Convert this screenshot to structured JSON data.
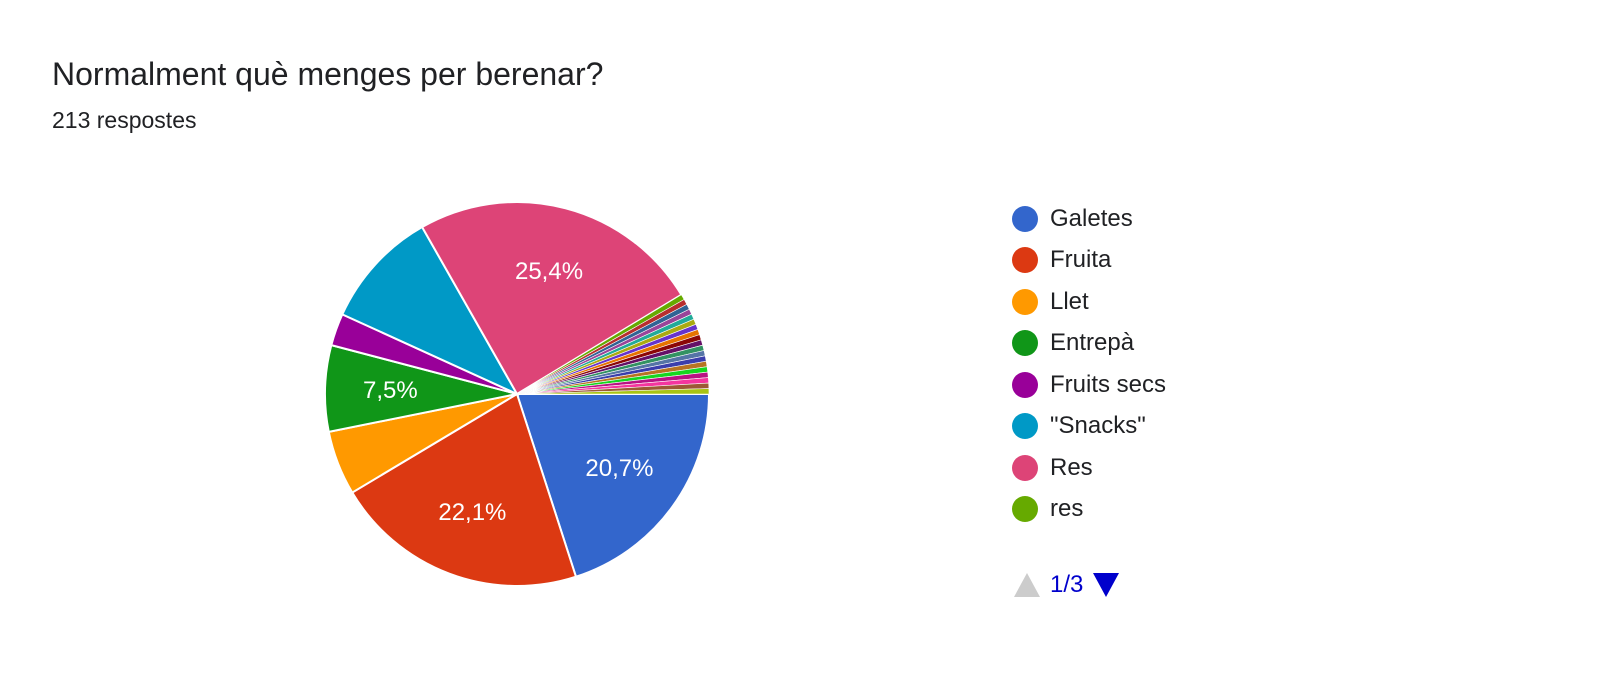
{
  "header": {
    "title": "Normalment què menges per berenar?",
    "responses": "213 respostes"
  },
  "pager": {
    "page_text": "1/3",
    "prev_color": "#cccccc",
    "next_color": "#0000cc",
    "prev_icon": "triangle-up-icon",
    "next_icon": "triangle-down-icon"
  },
  "legend": {
    "items": [
      {
        "label": "Galetes",
        "color": "#3366cc"
      },
      {
        "label": "Fruita",
        "color": "#dc3912"
      },
      {
        "label": "Llet",
        "color": "#ff9900"
      },
      {
        "label": "Entrepà",
        "color": "#109618"
      },
      {
        "label": "Fruits secs",
        "color": "#990099"
      },
      {
        "label": "\"Snacks\"",
        "color": "#0099c6"
      },
      {
        "label": "Res",
        "color": "#dd4477"
      },
      {
        "label": "res",
        "color": "#66aa00"
      }
    ]
  },
  "chart_data": {
    "type": "pie",
    "title": "Normalment què menges per berenar?",
    "slices": [
      {
        "label": "Galetes",
        "value": 20.7,
        "color": "#3366cc",
        "data_label": "20,7%"
      },
      {
        "label": "Fruita",
        "value": 22.1,
        "color": "#dc3912",
        "data_label": "22,1%"
      },
      {
        "label": "Llet",
        "value": 5.6,
        "color": "#ff9900",
        "data_label": ""
      },
      {
        "label": "Entrepà",
        "value": 7.5,
        "color": "#109618",
        "data_label": "7,5%"
      },
      {
        "label": "Fruits secs",
        "value": 2.8,
        "color": "#990099",
        "data_label": ""
      },
      {
        "label": "\"Snacks\"",
        "value": 10.3,
        "color": "#0099c6",
        "data_label": ""
      },
      {
        "label": "Res",
        "value": 25.4,
        "color": "#dd4477",
        "data_label": "25,4%"
      },
      {
        "label": "res",
        "value": 0.47,
        "color": "#66aa00",
        "data_label": ""
      },
      {
        "label": "",
        "value": 0.47,
        "color": "#b82e2e",
        "data_label": ""
      },
      {
        "label": "",
        "value": 0.47,
        "color": "#316395",
        "data_label": ""
      },
      {
        "label": "",
        "value": 0.47,
        "color": "#994499",
        "data_label": ""
      },
      {
        "label": "",
        "value": 0.47,
        "color": "#22aa99",
        "data_label": ""
      },
      {
        "label": "",
        "value": 0.47,
        "color": "#aaaa11",
        "data_label": ""
      },
      {
        "label": "",
        "value": 0.47,
        "color": "#6633cc",
        "data_label": ""
      },
      {
        "label": "",
        "value": 0.47,
        "color": "#e67300",
        "data_label": ""
      },
      {
        "label": "",
        "value": 0.47,
        "color": "#8b0707",
        "data_label": ""
      },
      {
        "label": "",
        "value": 0.47,
        "color": "#651067",
        "data_label": ""
      },
      {
        "label": "",
        "value": 0.47,
        "color": "#329262",
        "data_label": ""
      },
      {
        "label": "",
        "value": 0.47,
        "color": "#5574a6",
        "data_label": ""
      },
      {
        "label": "",
        "value": 0.47,
        "color": "#3b3eac",
        "data_label": ""
      },
      {
        "label": "",
        "value": 0.47,
        "color": "#b77322",
        "data_label": ""
      },
      {
        "label": "",
        "value": 0.47,
        "color": "#16d620",
        "data_label": ""
      },
      {
        "label": "",
        "value": 0.47,
        "color": "#b91383",
        "data_label": ""
      },
      {
        "label": "",
        "value": 0.47,
        "color": "#f4359e",
        "data_label": ""
      },
      {
        "label": "",
        "value": 0.47,
        "color": "#9c5935",
        "data_label": ""
      },
      {
        "label": "",
        "value": 0.47,
        "color": "#a9c413",
        "data_label": ""
      }
    ],
    "legend_position": "right"
  }
}
